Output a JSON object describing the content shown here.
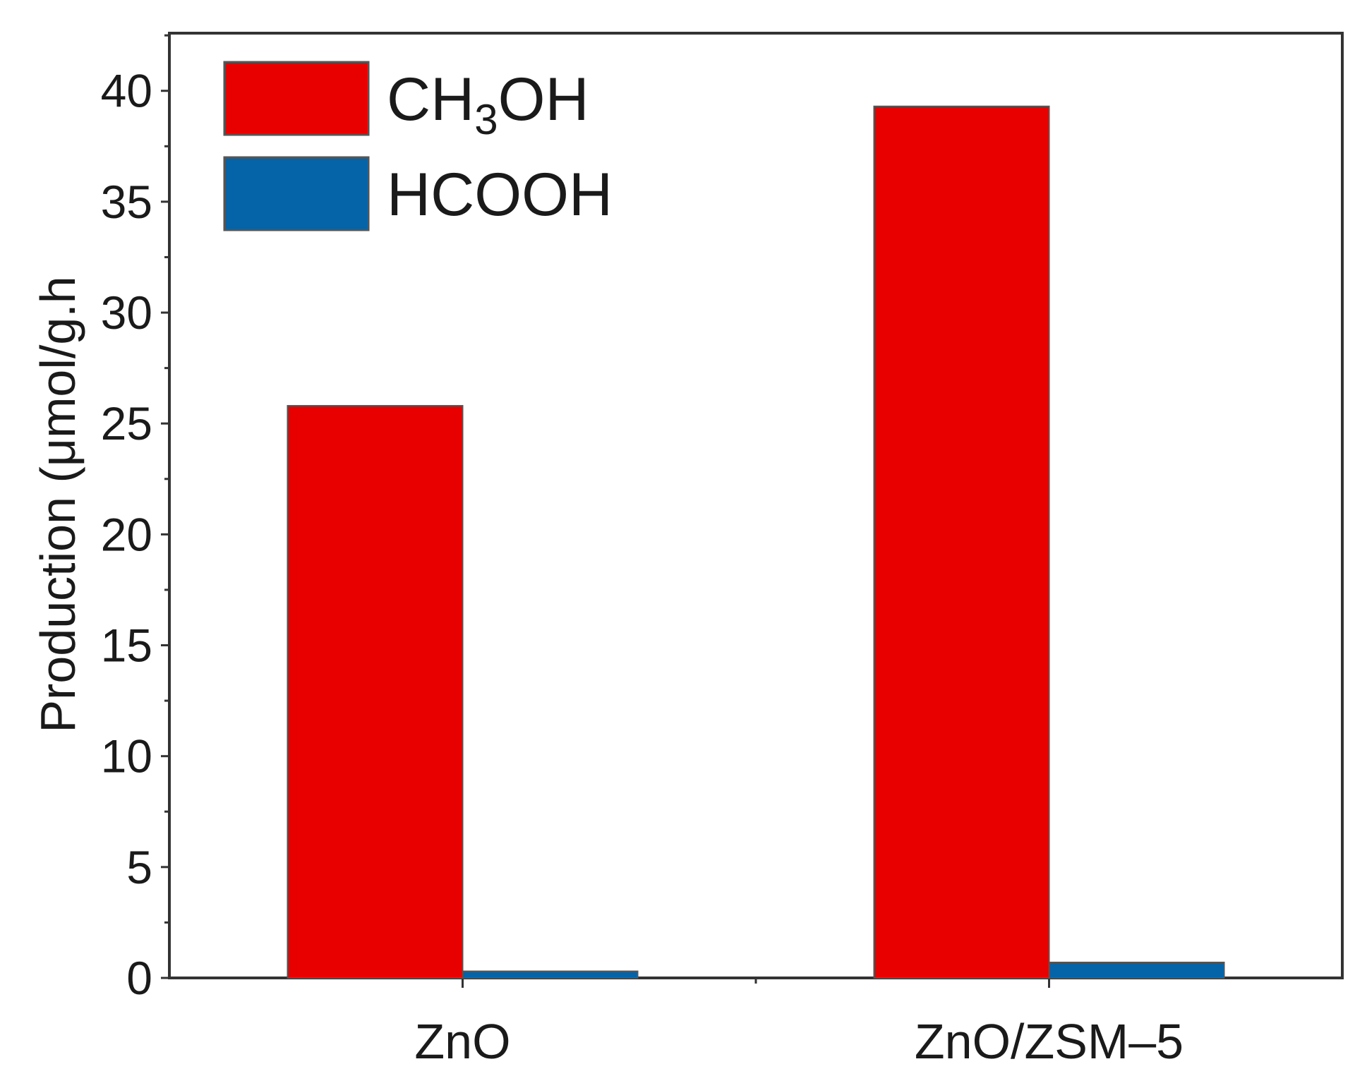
{
  "chart_data": {
    "type": "bar",
    "categories": [
      "ZnO",
      "ZnO/ZSM–5"
    ],
    "series": [
      {
        "name": "CH3OH",
        "label_main": "CH",
        "label_sub": "3",
        "label_tail": "OH",
        "color": "#e80000",
        "values": [
          25.8,
          39.3
        ]
      },
      {
        "name": "HCOOH",
        "label_main": "HCOOH",
        "color": "#0563a8",
        "values": [
          0.3,
          0.7
        ]
      }
    ],
    "ylabel": "Production (μmol/g.h",
    "xlabel": "",
    "ylim": [
      0,
      42.6
    ],
    "yticks": [
      0,
      5,
      10,
      15,
      20,
      25,
      30,
      35,
      40
    ],
    "legend_position": "top-left",
    "grid": false
  }
}
